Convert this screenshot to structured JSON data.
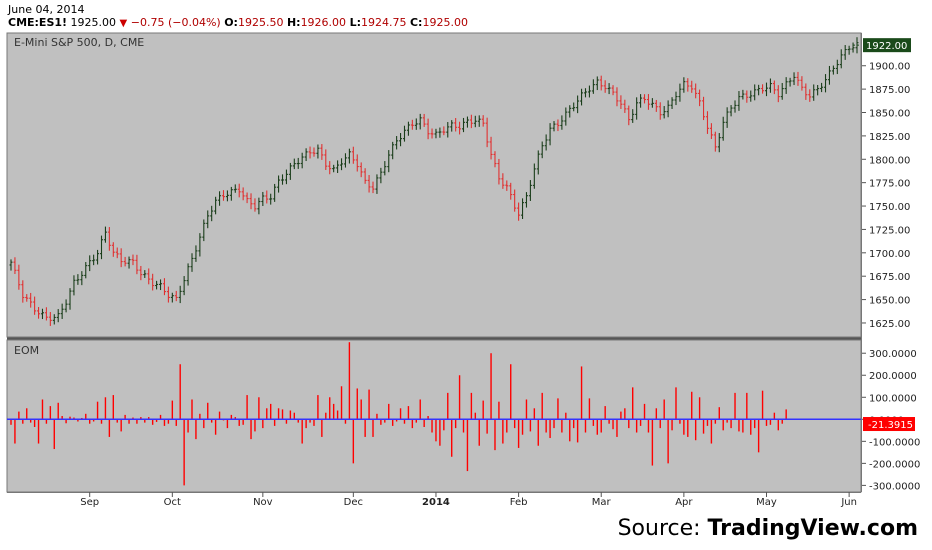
{
  "header": {
    "date": "June 04, 2014",
    "symbol": "CME:ES1!",
    "last": "1925.00",
    "change": "−0.75 (−0.04%)",
    "o_label": "O:",
    "o_value": "1925.50",
    "h_label": "H:",
    "h_value": "1926.00",
    "l_label": "L:",
    "l_value": "1924.75",
    "c_label": "C:",
    "c_value": "1925.00"
  },
  "source": {
    "prefix": "Source: ",
    "brand": "TradingView.com"
  },
  "colors": {
    "up": "#1a3d1a",
    "down": "#e03030",
    "eom": "#ff0000",
    "zero_line": "#3333ff",
    "plot_bg": "#c0c0c0",
    "last_price_bg": "#1a4a1a",
    "eom_label_bg": "#ff0000"
  },
  "chart_data": [
    {
      "type": "line",
      "title": "E-Mini S&P 500, D, CME",
      "ylim": [
        1610,
        1935
      ],
      "y_ticks": [
        1625,
        1650,
        1675,
        1700,
        1725,
        1750,
        1775,
        1800,
        1825,
        1850,
        1875,
        1900
      ],
      "y_tick_labels": [
        "1625.00",
        "1650.00",
        "1675.00",
        "1700.00",
        "1725.00",
        "1750.00",
        "1775.00",
        "1800.00",
        "1825.00",
        "1850.00",
        "1875.00",
        "1900.00"
      ],
      "last_price": 1922.0,
      "last_price_label": "1922.00",
      "x_ticks": [
        "Sep",
        "Oct",
        "Nov",
        "Dec",
        "2014",
        "Feb",
        "Mar",
        "Apr",
        "May",
        "Jun"
      ],
      "x_tick_days": [
        20,
        41,
        64,
        87,
        108,
        129,
        150,
        171,
        192,
        213
      ],
      "anchors": [
        [
          0,
          1690
        ],
        [
          3,
          1655
        ],
        [
          6,
          1640
        ],
        [
          9,
          1630
        ],
        [
          12,
          1632
        ],
        [
          14,
          1648
        ],
        [
          16,
          1668
        ],
        [
          18,
          1678
        ],
        [
          20,
          1690
        ],
        [
          22,
          1700
        ],
        [
          24,
          1722
        ],
        [
          26,
          1700
        ],
        [
          28,
          1692
        ],
        [
          31,
          1690
        ],
        [
          33,
          1678
        ],
        [
          36,
          1668
        ],
        [
          38,
          1664
        ],
        [
          40,
          1655
        ],
        [
          42,
          1650
        ],
        [
          44,
          1672
        ],
        [
          46,
          1693
        ],
        [
          48,
          1717
        ],
        [
          50,
          1740
        ],
        [
          52,
          1755
        ],
        [
          54,
          1762
        ],
        [
          56,
          1765
        ],
        [
          58,
          1768
        ],
        [
          60,
          1755
        ],
        [
          62,
          1750
        ],
        [
          64,
          1758
        ],
        [
          66,
          1760
        ],
        [
          68,
          1776
        ],
        [
          70,
          1785
        ],
        [
          72,
          1795
        ],
        [
          74,
          1802
        ],
        [
          76,
          1808
        ],
        [
          78,
          1810
        ],
        [
          80,
          1795
        ],
        [
          82,
          1788
        ],
        [
          84,
          1798
        ],
        [
          86,
          1805
        ],
        [
          88,
          1795
        ],
        [
          90,
          1775
        ],
        [
          92,
          1770
        ],
        [
          94,
          1785
        ],
        [
          96,
          1805
        ],
        [
          98,
          1820
        ],
        [
          100,
          1830
        ],
        [
          102,
          1838
        ],
        [
          104,
          1842
        ],
        [
          106,
          1830
        ],
        [
          108,
          1826
        ],
        [
          110,
          1832
        ],
        [
          112,
          1836
        ],
        [
          114,
          1835
        ],
        [
          116,
          1840
        ],
        [
          118,
          1842
        ],
        [
          120,
          1838
        ],
        [
          122,
          1805
        ],
        [
          124,
          1780
        ],
        [
          126,
          1770
        ],
        [
          128,
          1750
        ],
        [
          129,
          1742
        ],
        [
          131,
          1760
        ],
        [
          133,
          1790
        ],
        [
          135,
          1815
        ],
        [
          137,
          1832
        ],
        [
          139,
          1838
        ],
        [
          141,
          1848
        ],
        [
          143,
          1858
        ],
        [
          145,
          1868
        ],
        [
          147,
          1876
        ],
        [
          149,
          1882
        ],
        [
          151,
          1878
        ],
        [
          153,
          1870
        ],
        [
          155,
          1860
        ],
        [
          157,
          1842
        ],
        [
          159,
          1860
        ],
        [
          161,
          1865
        ],
        [
          163,
          1858
        ],
        [
          165,
          1850
        ],
        [
          167,
          1855
        ],
        [
          169,
          1870
        ],
        [
          171,
          1880
        ],
        [
          173,
          1878
        ],
        [
          175,
          1860
        ],
        [
          177,
          1835
        ],
        [
          179,
          1812
        ],
        [
          181,
          1840
        ],
        [
          183,
          1855
        ],
        [
          185,
          1866
        ],
        [
          187,
          1868
        ],
        [
          189,
          1872
        ],
        [
          191,
          1876
        ],
        [
          193,
          1878
        ],
        [
          195,
          1870
        ],
        [
          197,
          1880
        ],
        [
          199,
          1890
        ],
        [
          201,
          1875
        ],
        [
          203,
          1868
        ],
        [
          205,
          1875
        ],
        [
          207,
          1885
        ],
        [
          209,
          1898
        ],
        [
          211,
          1910
        ],
        [
          213,
          1920
        ],
        [
          215,
          1922
        ]
      ]
    },
    {
      "type": "bar",
      "title": "EOM",
      "ylim": [
        -330,
        360
      ],
      "y_ticks": [
        -300,
        -200,
        -100,
        0,
        100,
        200,
        300
      ],
      "y_tick_labels": [
        "-300.0000",
        "-200.0000",
        "-100.0000",
        "0.0000",
        "100.0000",
        "200.0000",
        "300.0000"
      ],
      "last_value": -21.3915,
      "last_value_label": "-21.3915",
      "values": [
        -25,
        -110,
        35,
        -20,
        50,
        -15,
        -35,
        -110,
        90,
        -20,
        60,
        -135,
        75,
        15,
        -18,
        12,
        8,
        -10,
        6,
        25,
        -20,
        -10,
        80,
        -20,
        100,
        -80,
        110,
        -15,
        -55,
        20,
        -20,
        8,
        -20,
        10,
        -15,
        10,
        -25,
        -12,
        20,
        -30,
        -20,
        85,
        -30,
        250,
        -300,
        -60,
        90,
        -90,
        25,
        -40,
        75,
        -15,
        -70,
        35,
        -5,
        -40,
        20,
        10,
        -30,
        -25,
        110,
        -90,
        -55,
        100,
        -40,
        50,
        70,
        -30,
        50,
        45,
        -20,
        40,
        30,
        -15,
        -110,
        -40,
        -15,
        -30,
        110,
        -80,
        30,
        100,
        70,
        40,
        150,
        -20,
        350,
        -200,
        140,
        90,
        -80,
        135,
        -80,
        25,
        -25,
        -15,
        70,
        -30,
        -10,
        50,
        -20,
        60,
        -40,
        -15,
        90,
        -35,
        15,
        -60,
        -100,
        -120,
        -50,
        120,
        -170,
        -40,
        200,
        -60,
        -235,
        120,
        30,
        -120,
        85,
        -65,
        300,
        -140,
        80,
        -110,
        -60,
        250,
        -40,
        -130,
        -70,
        90,
        -55,
        50,
        -120,
        120,
        -60,
        -85,
        -40,
        95,
        -60,
        30,
        -100,
        -40,
        -105,
        240,
        -60,
        95,
        -30,
        -70,
        -60,
        60,
        -20,
        -45,
        -80,
        35,
        50,
        -40,
        145,
        -60,
        -30,
        70,
        -60,
        -210,
        50,
        -40,
        90,
        -200,
        -50,
        145,
        -20,
        -70,
        -80,
        125,
        -95,
        100,
        -65,
        -30,
        -110,
        -20,
        55,
        -50,
        -15,
        -40,
        120,
        -55,
        -60,
        120,
        -70,
        -40,
        -150,
        130,
        -30,
        -25,
        30,
        -50,
        -20,
        45
      ]
    }
  ]
}
